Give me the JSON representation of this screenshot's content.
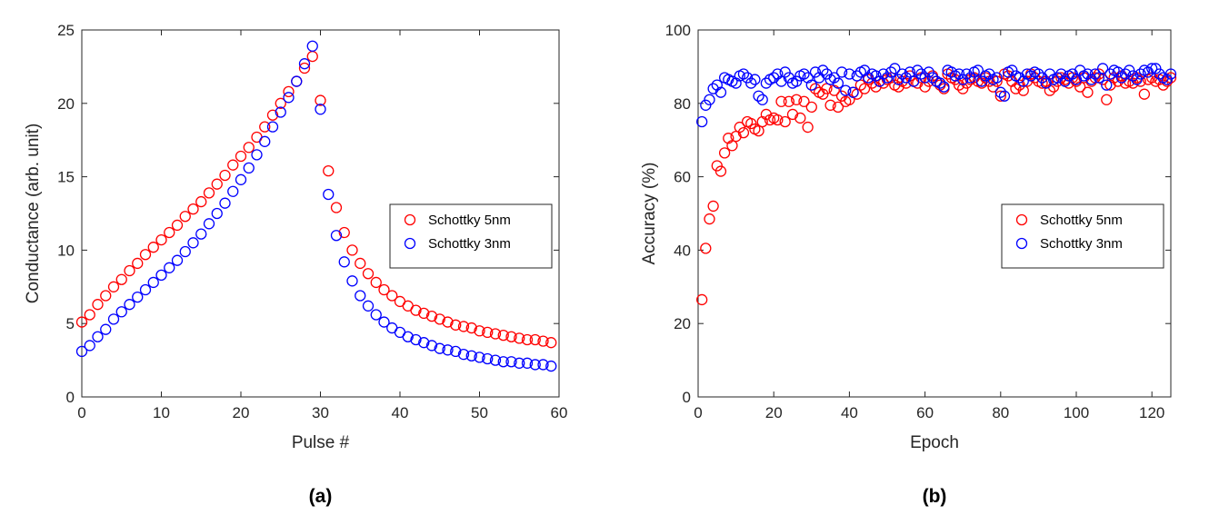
{
  "chart_data": [
    {
      "type": "scatter",
      "panel_label": "(a)",
      "xlabel": "Pulse #",
      "ylabel": "Conductance (arb. unit)",
      "x": [
        0,
        1,
        2,
        3,
        4,
        5,
        6,
        7,
        8,
        9,
        10,
        11,
        12,
        13,
        14,
        15,
        16,
        17,
        18,
        19,
        20,
        21,
        22,
        23,
        24,
        25,
        26,
        27,
        28,
        29,
        30,
        31,
        32,
        33,
        34,
        35,
        36,
        37,
        38,
        39,
        40,
        41,
        42,
        43,
        44,
        45,
        46,
        47,
        48,
        49,
        50,
        51,
        52,
        53,
        54,
        55,
        56,
        57,
        58,
        59
      ],
      "series": [
        {
          "name": "Schottky 5nm",
          "color": "#ff0000",
          "values": [
            5.1,
            5.6,
            6.3,
            6.9,
            7.5,
            8.0,
            8.6,
            9.1,
            9.7,
            10.2,
            10.7,
            11.2,
            11.7,
            12.3,
            12.8,
            13.3,
            13.9,
            14.5,
            15.1,
            15.8,
            16.4,
            17.0,
            17.7,
            18.4,
            19.2,
            20.0,
            20.8,
            21.5,
            22.4,
            23.2,
            20.2,
            15.4,
            12.9,
            11.2,
            10.0,
            9.1,
            8.4,
            7.8,
            7.3,
            6.9,
            6.5,
            6.2,
            5.9,
            5.7,
            5.5,
            5.3,
            5.1,
            4.9,
            4.8,
            4.7,
            4.5,
            4.4,
            4.3,
            4.2,
            4.1,
            4.0,
            3.9,
            3.9,
            3.8,
            3.7
          ]
        },
        {
          "name": "Schottky 3nm",
          "color": "#0000ff",
          "values": [
            3.1,
            3.5,
            4.1,
            4.6,
            5.3,
            5.8,
            6.3,
            6.8,
            7.3,
            7.8,
            8.3,
            8.8,
            9.3,
            9.9,
            10.5,
            11.1,
            11.8,
            12.5,
            13.2,
            14.0,
            14.8,
            15.6,
            16.5,
            17.4,
            18.4,
            19.4,
            20.4,
            21.5,
            22.7,
            23.9,
            19.6,
            13.8,
            11.0,
            9.2,
            7.9,
            6.9,
            6.2,
            5.6,
            5.1,
            4.7,
            4.4,
            4.1,
            3.9,
            3.7,
            3.5,
            3.3,
            3.2,
            3.1,
            2.9,
            2.8,
            2.7,
            2.6,
            2.5,
            2.4,
            2.4,
            2.3,
            2.3,
            2.2,
            2.2,
            2.1
          ]
        }
      ],
      "xlim": [
        0,
        60
      ],
      "ylim": [
        0,
        25
      ],
      "xticks": [
        0,
        10,
        20,
        30,
        40,
        50,
        60
      ],
      "yticks": [
        0,
        5,
        10,
        15,
        20,
        25
      ],
      "legend": "east"
    },
    {
      "type": "scatter",
      "panel_label": "(b)",
      "xlabel": "Epoch",
      "ylabel": "Accuracy (%)",
      "x": [
        1,
        2,
        3,
        4,
        5,
        6,
        7,
        8,
        9,
        10,
        11,
        12,
        13,
        14,
        15,
        16,
        17,
        18,
        19,
        20,
        21,
        22,
        23,
        24,
        25,
        26,
        27,
        28,
        29,
        30,
        31,
        32,
        33,
        34,
        35,
        36,
        37,
        38,
        39,
        40,
        41,
        42,
        43,
        44,
        45,
        46,
        47,
        48,
        49,
        50,
        51,
        52,
        53,
        54,
        55,
        56,
        57,
        58,
        59,
        60,
        61,
        62,
        63,
        64,
        65,
        66,
        67,
        68,
        69,
        70,
        71,
        72,
        73,
        74,
        75,
        76,
        77,
        78,
        79,
        80,
        81,
        82,
        83,
        84,
        85,
        86,
        87,
        88,
        89,
        90,
        91,
        92,
        93,
        94,
        95,
        96,
        97,
        98,
        99,
        100,
        101,
        102,
        103,
        104,
        105,
        106,
        107,
        108,
        109,
        110,
        111,
        112,
        113,
        114,
        115,
        116,
        117,
        118,
        119,
        120,
        121,
        122,
        123,
        124,
        125
      ],
      "series": [
        {
          "name": "Schottky 5nm",
          "color": "#ff0000",
          "values": [
            26.5,
            40.5,
            48.5,
            52,
            63,
            61.5,
            66.5,
            70.5,
            68.5,
            71,
            73.5,
            72,
            75,
            74.5,
            73,
            72.5,
            75,
            77,
            75.5,
            76,
            75.5,
            80.5,
            75,
            80.5,
            77,
            81,
            76,
            80.5,
            73.5,
            79,
            84,
            83,
            82.5,
            84,
            79.5,
            83.5,
            79,
            82,
            80.5,
            81,
            83,
            82.5,
            85,
            84,
            86.5,
            85.5,
            84.5,
            86,
            85.5,
            86.5,
            87,
            85,
            84.5,
            86,
            85.5,
            87.5,
            86,
            85.5,
            87,
            84.5,
            86,
            87.5,
            86,
            85,
            84,
            88,
            87,
            86.5,
            85,
            84,
            85.5,
            86.5,
            87,
            86,
            85.5,
            87,
            86,
            84.5,
            86,
            82,
            88,
            87.5,
            86,
            84,
            85,
            83.5,
            86,
            88,
            87,
            86,
            85.5,
            86,
            83.5,
            84.5,
            86,
            87,
            86.5,
            85.5,
            87,
            86,
            84.5,
            87,
            83,
            86,
            87,
            88,
            86.5,
            81,
            85,
            87,
            86,
            87.5,
            85.5,
            86,
            85.5,
            87,
            86,
            82.5,
            86.5,
            87,
            86,
            86.5,
            85,
            86,
            87
          ]
        },
        {
          "name": "Schottky 3nm",
          "color": "#0000ff",
          "values": [
            75,
            79.5,
            81,
            84,
            85,
            83,
            87,
            86.5,
            86,
            85.5,
            87.5,
            88,
            87,
            85.5,
            86.5,
            82,
            81,
            85.5,
            86.5,
            87,
            88,
            86,
            88.5,
            87,
            85.5,
            86,
            87.5,
            88,
            87,
            85,
            88.5,
            87,
            89,
            88,
            86.5,
            87,
            85.5,
            88.5,
            83.5,
            88,
            83,
            87.5,
            88.5,
            89,
            87,
            88,
            87.5,
            86,
            88,
            87,
            88.5,
            89.5,
            86.5,
            88,
            87,
            88.5,
            86,
            89,
            88,
            87,
            88.5,
            87,
            86,
            85.5,
            84.5,
            89,
            88.5,
            87.5,
            88,
            86.5,
            88,
            87,
            88.5,
            89,
            86,
            87.5,
            88,
            86.5,
            87,
            83,
            82,
            88.5,
            89,
            87.5,
            87,
            86,
            88,
            87.5,
            88.5,
            88,
            87,
            85.5,
            88,
            86.5,
            87,
            88,
            86,
            87.5,
            88,
            86.5,
            89,
            87.5,
            88,
            86.5,
            88,
            87,
            89.5,
            85,
            88,
            89,
            88.5,
            87,
            88,
            89,
            87.5,
            86.5,
            88,
            89,
            88.5,
            89.5,
            89.5,
            88,
            87,
            86.5,
            88
          ]
        }
      ],
      "xlim": [
        0,
        125
      ],
      "ylim": [
        0,
        100
      ],
      "xticks": [
        0,
        20,
        40,
        60,
        80,
        100,
        120
      ],
      "yticks": [
        0,
        20,
        40,
        60,
        80,
        100
      ],
      "legend": "east"
    }
  ]
}
